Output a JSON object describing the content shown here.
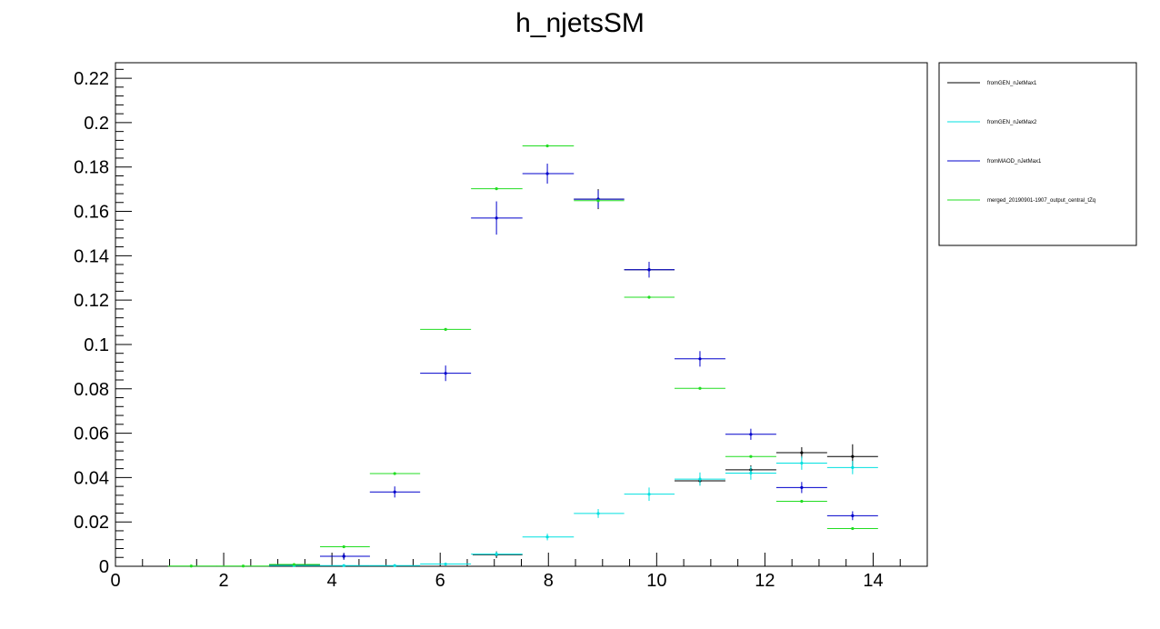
{
  "chart_data": {
    "type": "scatter",
    "title": "h_njetsSM",
    "xlabel": "",
    "ylabel": "",
    "xlim": [
      0,
      15
    ],
    "ylim": [
      0,
      0.227
    ],
    "x_ticks": [
      0,
      2,
      4,
      6,
      8,
      10,
      12,
      14
    ],
    "y_ticks": [
      0,
      0.02,
      0.04,
      0.06,
      0.08,
      0.1,
      0.12,
      0.14,
      0.16,
      0.18,
      0.2,
      0.22
    ],
    "x_tick_labels": [
      "0",
      "2",
      "4",
      "6",
      "8",
      "10",
      "12",
      "14"
    ],
    "y_tick_labels": [
      "0",
      "0.02",
      "0.04",
      "0.06",
      "0.08",
      "0.1",
      "0.12",
      "0.14",
      "0.16",
      "0.18",
      "0.2",
      "0.22"
    ],
    "grid": false,
    "legend_position": "right",
    "series": [
      {
        "name": "fromGEN_nJetMax1",
        "color": "#000000",
        "points": [
          {
            "x": 3.3,
            "xlo": 2.84,
            "xhi": 3.78,
            "y": 0.0005,
            "err": 0.0008
          },
          {
            "x": 4.22,
            "xlo": 3.78,
            "xhi": 4.7,
            "y": 0.0045,
            "err": 0.0015
          },
          {
            "x": 7.04,
            "xlo": 6.6,
            "xhi": 7.52,
            "y": 0.0052,
            "err": 0.0015
          },
          {
            "x": 8.92,
            "xlo": 8.47,
            "xhi": 9.4,
            "y": 0.1655,
            "err": 0.0045
          },
          {
            "x": 9.86,
            "xlo": 9.4,
            "xhi": 10.33,
            "y": 0.1337,
            "err": 0.0035
          },
          {
            "x": 10.8,
            "xlo": 10.33,
            "xhi": 11.27,
            "y": 0.0385,
            "err": 0.002
          },
          {
            "x": 11.74,
            "xlo": 11.27,
            "xhi": 12.21,
            "y": 0.0435,
            "err": 0.002
          },
          {
            "x": 12.68,
            "xlo": 12.21,
            "xhi": 13.15,
            "y": 0.0512,
            "err": 0.0025
          },
          {
            "x": 13.62,
            "xlo": 13.15,
            "xhi": 14.09,
            "y": 0.0495,
            "err": 0.0055
          }
        ]
      },
      {
        "name": "fromGEN_nJetMax2",
        "color": "#00e0e0",
        "points": [
          {
            "x": 3.3,
            "xlo": 2.84,
            "xhi": 3.78,
            "y": 0.0003,
            "err": 0.0003
          },
          {
            "x": 4.22,
            "xlo": 3.78,
            "xhi": 4.7,
            "y": 0.0003,
            "err": 0.0003
          },
          {
            "x": 5.16,
            "xlo": 4.7,
            "xhi": 5.63,
            "y": 0.0003,
            "err": 0.0003
          },
          {
            "x": 6.1,
            "xlo": 5.63,
            "xhi": 6.57,
            "y": 0.001,
            "err": 0.0005
          },
          {
            "x": 7.04,
            "xlo": 6.57,
            "xhi": 7.52,
            "y": 0.0055,
            "err": 0.001
          },
          {
            "x": 7.98,
            "xlo": 7.52,
            "xhi": 8.47,
            "y": 0.0132,
            "err": 0.0015
          },
          {
            "x": 8.92,
            "xlo": 8.47,
            "xhi": 9.4,
            "y": 0.0238,
            "err": 0.002
          },
          {
            "x": 9.86,
            "xlo": 9.4,
            "xhi": 10.33,
            "y": 0.0325,
            "err": 0.003
          },
          {
            "x": 10.8,
            "xlo": 10.33,
            "xhi": 11.27,
            "y": 0.0393,
            "err": 0.003
          },
          {
            "x": 11.74,
            "xlo": 11.27,
            "xhi": 12.21,
            "y": 0.042,
            "err": 0.003
          },
          {
            "x": 12.68,
            "xlo": 12.21,
            "xhi": 13.15,
            "y": 0.0465,
            "err": 0.003
          },
          {
            "x": 13.62,
            "xlo": 13.15,
            "xhi": 14.09,
            "y": 0.0445,
            "err": 0.003
          }
        ]
      },
      {
        "name": "fromMAOD_nJetMax1",
        "color": "#0000cc",
        "points": [
          {
            "x": 4.22,
            "xlo": 3.78,
            "xhi": 4.7,
            "y": 0.0045,
            "err": 0.0015
          },
          {
            "x": 5.16,
            "xlo": 4.7,
            "xhi": 5.63,
            "y": 0.0335,
            "err": 0.0025
          },
          {
            "x": 6.1,
            "xlo": 5.63,
            "xhi": 6.57,
            "y": 0.087,
            "err": 0.0035
          },
          {
            "x": 7.04,
            "xlo": 6.57,
            "xhi": 7.52,
            "y": 0.157,
            "err": 0.0075
          },
          {
            "x": 7.98,
            "xlo": 7.52,
            "xhi": 8.47,
            "y": 0.177,
            "err": 0.0045
          },
          {
            "x": 8.92,
            "xlo": 8.47,
            "xhi": 9.4,
            "y": 0.1655,
            "err": 0.004
          },
          {
            "x": 9.86,
            "xlo": 9.4,
            "xhi": 10.33,
            "y": 0.1337,
            "err": 0.0035
          },
          {
            "x": 10.8,
            "xlo": 10.33,
            "xhi": 11.27,
            "y": 0.0935,
            "err": 0.0035
          },
          {
            "x": 11.74,
            "xlo": 11.27,
            "xhi": 12.21,
            "y": 0.0595,
            "err": 0.0025
          },
          {
            "x": 12.68,
            "xlo": 12.21,
            "xhi": 13.15,
            "y": 0.0355,
            "err": 0.0025
          },
          {
            "x": 13.62,
            "xlo": 13.15,
            "xhi": 14.09,
            "y": 0.0228,
            "err": 0.002
          }
        ]
      },
      {
        "name": "merged_20190901-1907_output_central_tZq",
        "color": "#22dd22",
        "points": [
          {
            "x": 1.4,
            "xlo": 0.97,
            "xhi": 1.88,
            "y": 0.0001,
            "err": 0
          },
          {
            "x": 2.36,
            "xlo": 1.88,
            "xhi": 2.84,
            "y": 0.0001,
            "err": 0
          },
          {
            "x": 3.3,
            "xlo": 2.84,
            "xhi": 3.78,
            "y": 0.0008,
            "err": 0
          },
          {
            "x": 4.22,
            "xlo": 3.78,
            "xhi": 4.7,
            "y": 0.0088,
            "err": 0
          },
          {
            "x": 5.16,
            "xlo": 4.7,
            "xhi": 5.63,
            "y": 0.0418,
            "err": 0
          },
          {
            "x": 6.1,
            "xlo": 5.63,
            "xhi": 6.57,
            "y": 0.1068,
            "err": 0
          },
          {
            "x": 7.04,
            "xlo": 6.57,
            "xhi": 7.52,
            "y": 0.1702,
            "err": 0
          },
          {
            "x": 7.98,
            "xlo": 7.52,
            "xhi": 8.47,
            "y": 0.1895,
            "err": 0
          },
          {
            "x": 8.92,
            "xlo": 8.47,
            "xhi": 9.4,
            "y": 0.1648,
            "err": 0
          },
          {
            "x": 9.86,
            "xlo": 9.4,
            "xhi": 10.33,
            "y": 0.1213,
            "err": 0
          },
          {
            "x": 10.8,
            "xlo": 10.33,
            "xhi": 11.27,
            "y": 0.0802,
            "err": 0
          },
          {
            "x": 11.74,
            "xlo": 11.27,
            "xhi": 12.21,
            "y": 0.0495,
            "err": 0
          },
          {
            "x": 12.68,
            "xlo": 12.21,
            "xhi": 13.15,
            "y": 0.0293,
            "err": 0
          },
          {
            "x": 13.62,
            "xlo": 13.15,
            "xhi": 14.09,
            "y": 0.017,
            "err": 0
          }
        ]
      }
    ]
  }
}
